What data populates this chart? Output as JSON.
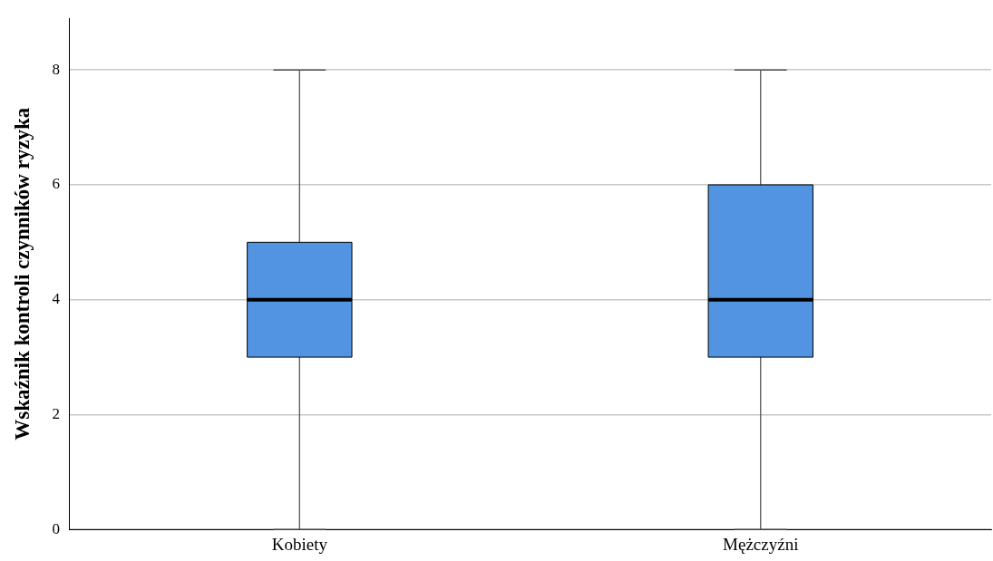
{
  "chart_data": {
    "type": "box",
    "ylabel": "Wskaźnik kontroli czynników ryzyka",
    "categories": [
      "Kobiety",
      "Mężczyźni"
    ],
    "series": [
      {
        "color": "#5294e2",
        "boxes": [
          {
            "low": 0,
            "q1": 3,
            "median": 4,
            "q3": 5,
            "high": 8
          },
          {
            "low": 0,
            "q1": 3,
            "median": 4,
            "q3": 6,
            "high": 8
          }
        ]
      }
    ],
    "ylim": [
      0,
      8.9
    ],
    "yticks": [
      0,
      2,
      4,
      6,
      8
    ],
    "grid": "y",
    "legend": false
  }
}
